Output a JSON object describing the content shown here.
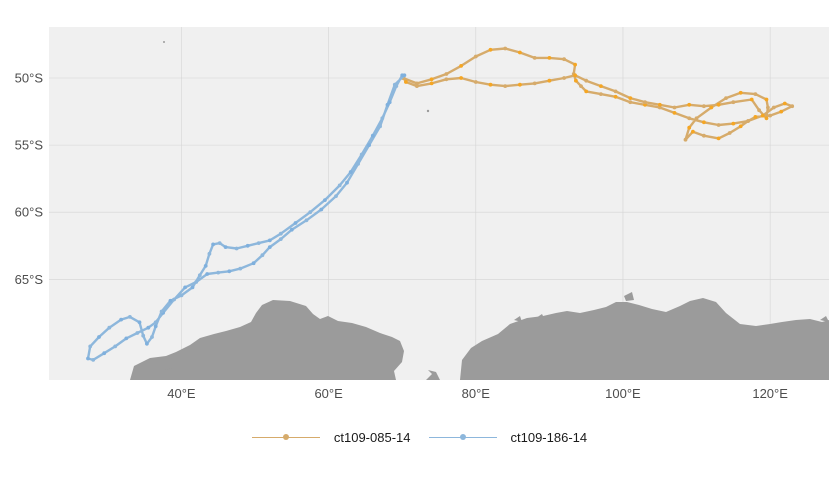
{
  "chart_data": {
    "type": "map",
    "xlim": [
      22,
      128
    ],
    "ylim": [
      -72.5,
      -46.2
    ],
    "x_ticks": [
      {
        "value": 40,
        "label": "40°E"
      },
      {
        "value": 60,
        "label": "60°E"
      },
      {
        "value": 80,
        "label": "80°E"
      },
      {
        "value": 100,
        "label": "100°E"
      },
      {
        "value": 120,
        "label": "120°E"
      }
    ],
    "y_ticks": [
      {
        "value": -50,
        "label": "50°S"
      },
      {
        "value": -55,
        "label": "55°S"
      },
      {
        "value": -60,
        "label": "60°S"
      },
      {
        "value": -65,
        "label": "65°S"
      }
    ],
    "grid": true,
    "legend_position": "bottom",
    "colors": {
      "panel": "#f0f0f0",
      "grid": "#d4d4d4",
      "land": "#9b9b9b"
    },
    "series": [
      {
        "name": "ct109-085-14",
        "color": "#d6ab6b",
        "point_color": "#f5a623",
        "points": [
          [
            70.1,
            -50.0
          ],
          [
            72,
            -50.4
          ],
          [
            74,
            -50.1
          ],
          [
            76,
            -49.7
          ],
          [
            78,
            -49.1
          ],
          [
            80,
            -48.4
          ],
          [
            82,
            -47.9
          ],
          [
            84,
            -47.8
          ],
          [
            86,
            -48.1
          ],
          [
            88,
            -48.5
          ],
          [
            90,
            -48.5
          ],
          [
            92,
            -48.6
          ],
          [
            93.5,
            -49.0
          ],
          [
            93.3,
            -49.7
          ],
          [
            93.6,
            -50.2
          ],
          [
            94.3,
            -50.6
          ],
          [
            95,
            -51.0
          ],
          [
            97,
            -51.2
          ],
          [
            99,
            -51.4
          ],
          [
            101,
            -51.8
          ],
          [
            103,
            -52.0
          ],
          [
            105,
            -52.2
          ],
          [
            107,
            -52.6
          ],
          [
            109,
            -53.0
          ],
          [
            111,
            -53.3
          ],
          [
            113,
            -53.5
          ],
          [
            115,
            -53.4
          ],
          [
            117,
            -53.2
          ],
          [
            119,
            -52.8
          ],
          [
            120.5,
            -52.2
          ],
          [
            122,
            -51.9
          ],
          [
            123,
            -52.1
          ],
          [
            121.5,
            -52.5
          ],
          [
            120,
            -52.8
          ],
          [
            118,
            -52.9
          ],
          [
            117,
            -53.2
          ],
          [
            116,
            -53.6
          ],
          [
            114.5,
            -54.1
          ],
          [
            113,
            -54.5
          ],
          [
            111,
            -54.3
          ],
          [
            109.5,
            -54.0
          ],
          [
            108.5,
            -54.6
          ],
          [
            109,
            -53.7
          ],
          [
            110,
            -53.0
          ],
          [
            112,
            -52.2
          ],
          [
            114,
            -51.5
          ],
          [
            116,
            -51.1
          ],
          [
            118,
            -51.2
          ],
          [
            119.5,
            -51.6
          ],
          [
            119.7,
            -52.2
          ],
          [
            119.5,
            -53.0
          ],
          [
            118.5,
            -52.4
          ],
          [
            117.5,
            -51.6
          ],
          [
            115,
            -51.8
          ],
          [
            113,
            -52.0
          ],
          [
            111,
            -52.1
          ],
          [
            109,
            -52.0
          ],
          [
            107,
            -52.2
          ],
          [
            105,
            -52.0
          ],
          [
            103,
            -51.8
          ],
          [
            101,
            -51.5
          ],
          [
            99,
            -51.0
          ],
          [
            97,
            -50.6
          ],
          [
            95,
            -50.2
          ],
          [
            93.5,
            -49.8
          ],
          [
            92,
            -50.0
          ],
          [
            90,
            -50.2
          ],
          [
            88,
            -50.4
          ],
          [
            86,
            -50.5
          ],
          [
            84,
            -50.6
          ],
          [
            82,
            -50.5
          ],
          [
            80,
            -50.3
          ],
          [
            78,
            -50.0
          ],
          [
            76,
            -50.1
          ],
          [
            74,
            -50.4
          ],
          [
            72,
            -50.6
          ],
          [
            70.5,
            -50.3
          ],
          [
            70.2,
            -50.0
          ]
        ]
      },
      {
        "name": "ct109-186-14",
        "color": "#8db7dc",
        "point_color": "#7fb0dd",
        "points": [
          [
            70.3,
            -49.8
          ],
          [
            69.0,
            -50.5
          ],
          [
            68.0,
            -52.0
          ],
          [
            67.0,
            -53.6
          ],
          [
            65.5,
            -55.0
          ],
          [
            64.0,
            -56.4
          ],
          [
            62.5,
            -57.8
          ],
          [
            61.0,
            -58.8
          ],
          [
            59.0,
            -59.8
          ],
          [
            57.0,
            -60.6
          ],
          [
            55.0,
            -61.3
          ],
          [
            53.5,
            -62.0
          ],
          [
            52.0,
            -62.6
          ],
          [
            51.0,
            -63.2
          ],
          [
            49.8,
            -63.8
          ],
          [
            48.0,
            -64.2
          ],
          [
            46.5,
            -64.4
          ],
          [
            45.0,
            -64.5
          ],
          [
            43.5,
            -64.6
          ],
          [
            42.0,
            -65.2
          ],
          [
            40.5,
            -65.6
          ],
          [
            39.0,
            -66.5
          ],
          [
            37.5,
            -67.5
          ],
          [
            36.5,
            -68.2
          ],
          [
            35.5,
            -68.6
          ],
          [
            34.0,
            -69.0
          ],
          [
            32.5,
            -69.4
          ],
          [
            31.0,
            -70.0
          ],
          [
            29.5,
            -70.5
          ],
          [
            28.0,
            -71.0
          ],
          [
            27.3,
            -70.9
          ],
          [
            27.6,
            -70.0
          ],
          [
            28.8,
            -69.3
          ],
          [
            30.2,
            -68.6
          ],
          [
            31.8,
            -68.0
          ],
          [
            33.0,
            -67.8
          ],
          [
            34.3,
            -68.2
          ],
          [
            34.8,
            -69.2
          ],
          [
            35.3,
            -69.8
          ],
          [
            36.0,
            -69.3
          ],
          [
            36.5,
            -68.5
          ],
          [
            37.3,
            -67.4
          ],
          [
            38.5,
            -66.6
          ],
          [
            40.0,
            -66.2
          ],
          [
            41.5,
            -65.6
          ],
          [
            42.5,
            -64.7
          ],
          [
            43.3,
            -64.0
          ],
          [
            43.8,
            -63.1
          ],
          [
            44.3,
            -62.4
          ],
          [
            45.2,
            -62.3
          ],
          [
            46.0,
            -62.6
          ],
          [
            47.5,
            -62.7
          ],
          [
            49.0,
            -62.5
          ],
          [
            50.5,
            -62.3
          ],
          [
            52.0,
            -62.1
          ],
          [
            53.5,
            -61.6
          ],
          [
            55.5,
            -60.8
          ],
          [
            57.5,
            -60.0
          ],
          [
            59.5,
            -59.1
          ],
          [
            61.5,
            -58.0
          ],
          [
            63.0,
            -57.0
          ],
          [
            64.5,
            -55.7
          ],
          [
            66.0,
            -54.3
          ],
          [
            67.3,
            -53.0
          ],
          [
            68.3,
            -51.8
          ],
          [
            69.2,
            -50.6
          ],
          [
            70.0,
            -49.8
          ]
        ]
      }
    ]
  },
  "legend": {
    "items": [
      {
        "label": "ct109-085-14",
        "color": "#d6ab6b"
      },
      {
        "label": "ct109-186-14",
        "color": "#8db7dc"
      }
    ]
  }
}
